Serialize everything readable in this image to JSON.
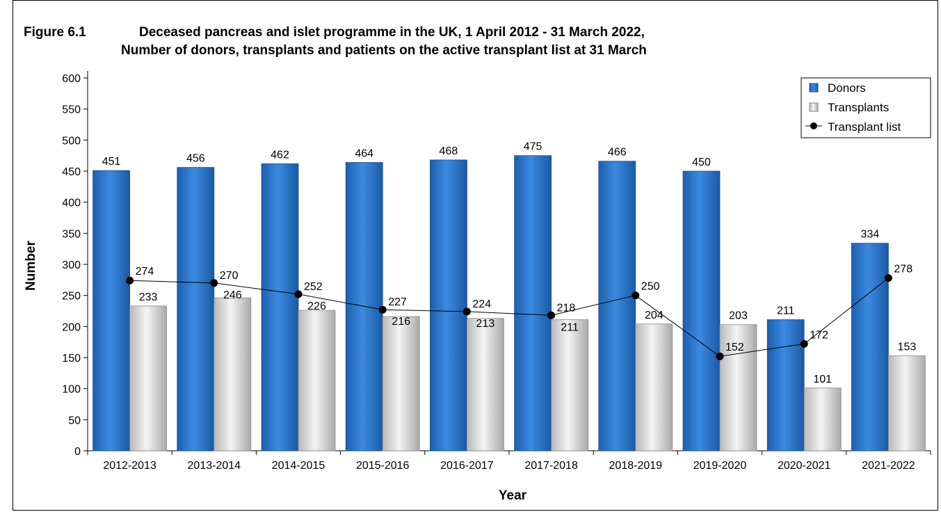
{
  "figure_label": "Figure 6.1",
  "chart_data": {
    "type": "bar",
    "title_line1": "Deceased pancreas and islet programme in the UK, 1 April 2012 - 31 March 2022,",
    "title_line2": "Number of donors, transplants and patients on the active transplant list at 31 March",
    "xlabel": "Year",
    "ylabel": "Number",
    "ylim": [
      0,
      600
    ],
    "yticks": [
      0,
      50,
      100,
      150,
      200,
      250,
      300,
      350,
      400,
      450,
      500,
      550,
      600
    ],
    "categories": [
      "2012-2013",
      "2013-2014",
      "2014-2015",
      "2015-2016",
      "2016-2017",
      "2017-2018",
      "2018-2019",
      "2019-2020",
      "2020-2021",
      "2021-2022"
    ],
    "series": [
      {
        "name": "Donors",
        "kind": "bar",
        "color": "#2f78c9",
        "values": [
          451,
          456,
          462,
          464,
          468,
          475,
          466,
          450,
          211,
          334
        ]
      },
      {
        "name": "Transplants",
        "kind": "bar",
        "color": "#d4d4d4",
        "values": [
          233,
          246,
          226,
          216,
          213,
          211,
          204,
          203,
          101,
          153
        ]
      },
      {
        "name": "Transplant list",
        "kind": "line",
        "color": "#000000",
        "values": [
          274,
          270,
          252,
          227,
          224,
          218,
          250,
          152,
          172,
          278
        ]
      }
    ],
    "legend_position": "top-right",
    "grid": false
  }
}
